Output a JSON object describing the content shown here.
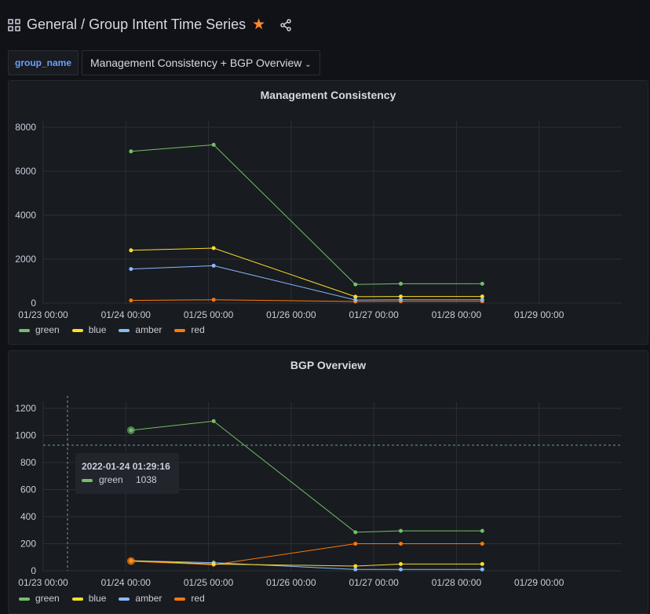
{
  "header": {
    "folder": "General",
    "title": "/ Group Intent Time Series",
    "icons": [
      "dashboard-grid-icon",
      "star-icon",
      "share-icon"
    ]
  },
  "variable": {
    "label": "group_name",
    "value": "Management Consistency + BGP Overview"
  },
  "colors": {
    "green": "#73bf69",
    "blue": "#fade2a",
    "amber": "#8ab8ff",
    "red": "#ff780a"
  },
  "chart_data": [
    {
      "type": "line",
      "title": "Management Consistency",
      "x_ticks": [
        "01/23 00:00",
        "01/24 00:00",
        "01/25 00:00",
        "01/26 00:00",
        "01/27 00:00",
        "01/28 00:00",
        "01/29 00:00"
      ],
      "y_ticks": [
        "0",
        "2000",
        "4000",
        "6000",
        "8000"
      ],
      "ylim": [
        0,
        8000
      ],
      "xlim": [
        "2022-01-23T00:00",
        "2022-01-30T00:00"
      ],
      "grid": true,
      "legend": "bottom-left",
      "x": [
        "2022-01-24T01:30",
        "2022-01-25T01:30",
        "2022-01-26T18:40",
        "2022-01-27T07:50",
        "2022-01-28T07:30"
      ],
      "series": [
        {
          "name": "green",
          "values": [
            6900,
            7200,
            850,
            880,
            880
          ]
        },
        {
          "name": "blue",
          "values": [
            2400,
            2500,
            290,
            300,
            300
          ]
        },
        {
          "name": "amber",
          "values": [
            1550,
            1700,
            140,
            150,
            150
          ]
        },
        {
          "name": "red",
          "values": [
            120,
            150,
            70,
            80,
            80
          ]
        }
      ]
    },
    {
      "type": "line",
      "title": "BGP Overview",
      "x_ticks": [
        "01/23 00:00",
        "01/24 00:00",
        "01/25 00:00",
        "01/26 00:00",
        "01/27 00:00",
        "01/28 00:00",
        "01/29 00:00"
      ],
      "y_ticks": [
        "0",
        "200",
        "400",
        "600",
        "800",
        "1000",
        "1200"
      ],
      "ylim": [
        0,
        1200
      ],
      "xlim": [
        "2022-01-23T00:00",
        "2022-01-30T00:00"
      ],
      "grid": true,
      "legend": "bottom-left",
      "x": [
        "2022-01-24T01:30",
        "2022-01-25T01:30",
        "2022-01-26T18:40",
        "2022-01-27T07:50",
        "2022-01-28T07:30"
      ],
      "series": [
        {
          "name": "green",
          "values": [
            1038,
            1105,
            285,
            295,
            295
          ]
        },
        {
          "name": "blue",
          "values": [
            75,
            50,
            35,
            50,
            50
          ]
        },
        {
          "name": "amber",
          "values": [
            75,
            60,
            10,
            10,
            10
          ]
        },
        {
          "name": "red",
          "values": [
            70,
            45,
            200,
            200,
            200
          ]
        }
      ],
      "tooltip": {
        "time": "2022-01-24 01:29:16",
        "series": "green",
        "value": "1038"
      }
    }
  ]
}
